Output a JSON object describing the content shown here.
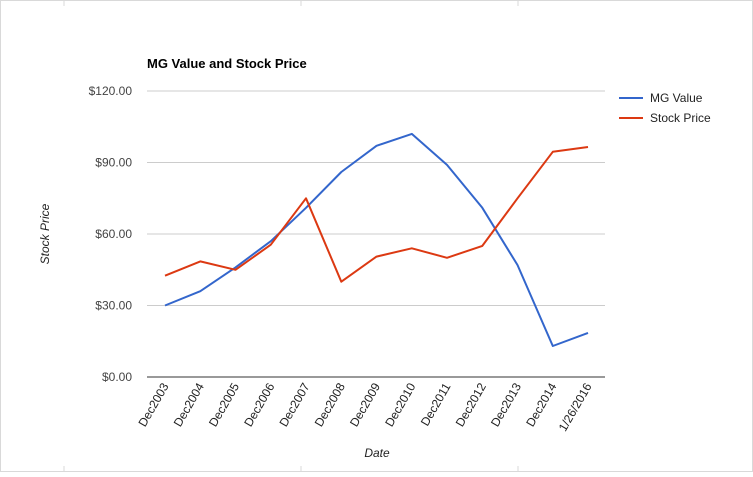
{
  "chart_data": {
    "type": "line",
    "title": "MG Value and Stock Price",
    "xlabel": "Date",
    "ylabel": "Stock Price",
    "categories": [
      "Dec2003",
      "Dec2004",
      "Dec2005",
      "Dec2006",
      "Dec2007",
      "Dec2008",
      "Dec2009",
      "Dec2010",
      "Dec2011",
      "Dec2012",
      "Dec2013",
      "Dec2014",
      "1/26/2016"
    ],
    "yticks": [
      "$0.00",
      "$30.00",
      "$60.00",
      "$90.00",
      "$120.00"
    ],
    "ylim": [
      0,
      120
    ],
    "grid": true,
    "legend_position": "right",
    "series": [
      {
        "name": "MG Value",
        "color": "#3366cc",
        "values": [
          30,
          36,
          46,
          57,
          71,
          86,
          97,
          102,
          89,
          71,
          47,
          13,
          18.5
        ]
      },
      {
        "name": "Stock Price",
        "color": "#dc3912",
        "values": [
          42.5,
          48.5,
          45,
          55.5,
          75,
          40,
          50.5,
          54,
          50,
          55,
          75,
          94.5,
          96.5
        ]
      }
    ]
  }
}
